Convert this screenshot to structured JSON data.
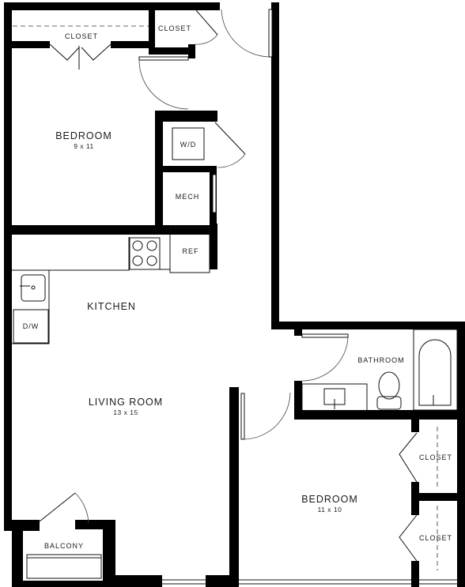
{
  "rooms": {
    "bedroom1": {
      "name": "BEDROOM",
      "dims": "9 x 11"
    },
    "bedroom2": {
      "name": "BEDROOM",
      "dims": "11 x 10"
    },
    "living": {
      "name": "LIVING ROOM",
      "dims": "13 x 15"
    },
    "kitchen": {
      "name": "KITCHEN"
    },
    "bathroom": {
      "name": "BATHROOM"
    },
    "balcony": {
      "name": "BALCONY"
    }
  },
  "closets": {
    "top_left": "CLOSET",
    "top_mid": "CLOSET",
    "right_upper": "CLOSET",
    "right_lower": "CLOSET"
  },
  "fixtures": {
    "washer_dryer": "W/D",
    "mech": "MECH",
    "refrigerator": "REF",
    "dishwasher": "D/W"
  }
}
